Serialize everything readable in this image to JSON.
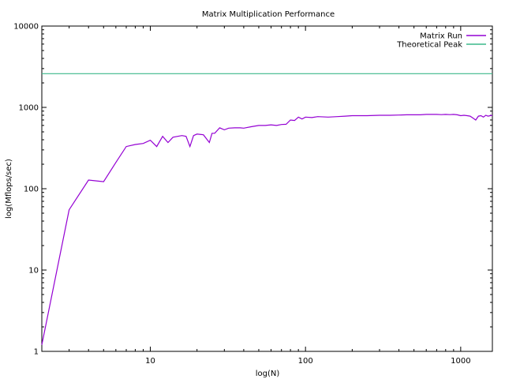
{
  "chart_data": {
    "type": "line",
    "title": "Matrix Multiplication Performance",
    "xlabel": "log(N)",
    "ylabel": "log(Mflops/sec)",
    "xscale": "log",
    "yscale": "log",
    "xlim": [
      2,
      1600
    ],
    "ylim": [
      1,
      10000
    ],
    "xticks": [
      10,
      100,
      1000
    ],
    "xtick_labels": [
      "10",
      "100",
      "1000"
    ],
    "yticks": [
      1,
      10,
      100,
      1000,
      10000
    ],
    "ytick_labels": [
      "1",
      "10",
      "100",
      "1000",
      "10000"
    ],
    "grid": false,
    "legend": "top-right",
    "series": [
      {
        "name": "Matrix Run",
        "color": "#9400d3",
        "x": [
          2,
          3,
          4,
          5,
          6,
          7,
          8,
          9,
          10,
          11,
          12,
          13,
          14,
          15,
          16,
          17,
          18,
          19,
          20,
          22,
          24,
          25,
          26,
          28,
          30,
          32,
          35,
          38,
          40,
          45,
          50,
          55,
          60,
          65,
          70,
          75,
          80,
          85,
          90,
          95,
          100,
          110,
          120,
          140,
          160,
          180,
          200,
          250,
          300,
          350,
          400,
          450,
          500,
          550,
          600,
          650,
          700,
          750,
          800,
          850,
          900,
          950,
          1000,
          1050,
          1100,
          1150,
          1200,
          1250,
          1300,
          1350,
          1400,
          1450,
          1500,
          1550,
          1600
        ],
        "values": [
          1.2,
          55,
          128,
          122,
          210,
          330,
          350,
          360,
          395,
          330,
          440,
          370,
          430,
          440,
          450,
          440,
          330,
          450,
          470,
          460,
          370,
          480,
          480,
          560,
          530,
          555,
          560,
          560,
          555,
          580,
          600,
          600,
          610,
          600,
          615,
          620,
          700,
          690,
          760,
          720,
          760,
          750,
          770,
          760,
          770,
          780,
          790,
          790,
          800,
          800,
          805,
          810,
          810,
          810,
          820,
          820,
          820,
          815,
          820,
          815,
          820,
          810,
          790,
          800,
          790,
          780,
          740,
          700,
          780,
          790,
          760,
          800,
          780,
          790,
          800
        ]
      },
      {
        "name": "Theoretical Peak",
        "color": "#3cb88a",
        "x": [
          2,
          1600
        ],
        "values": [
          2600,
          2600
        ]
      }
    ]
  }
}
